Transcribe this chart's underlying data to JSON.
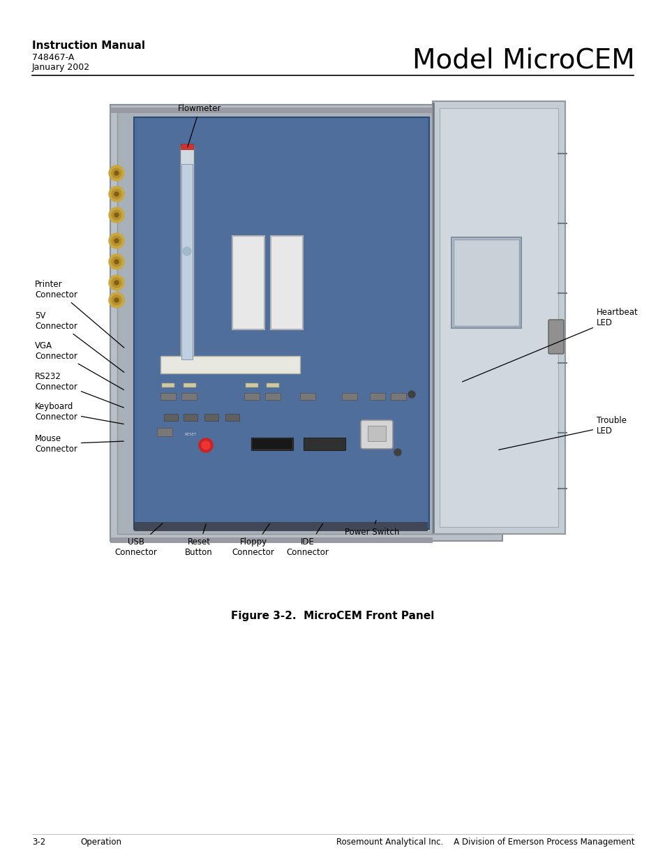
{
  "bg_color": "#ffffff",
  "header": {
    "title": "Instruction Manual",
    "subtitle1": "748467-A",
    "subtitle2": "January 2002",
    "model": "Model MicroCEM",
    "title_fontsize": 11,
    "subtitle_fontsize": 9,
    "model_fontsize": 28
  },
  "footer": {
    "left": "3-2",
    "middle_left": "Operation",
    "right": "Rosemount Analytical Inc.    A Division of Emerson Process Management",
    "fontsize": 8.5
  },
  "figure_caption": "Figure 3-2.  MicroCEM Front Panel",
  "figure_caption_fontsize": 11,
  "callout_fontsize": 8.5
}
